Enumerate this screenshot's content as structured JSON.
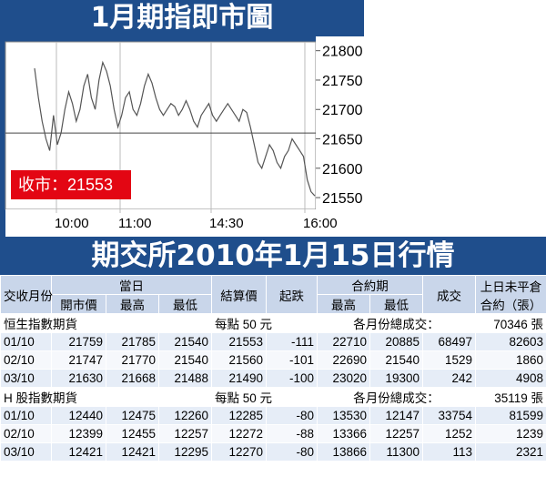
{
  "chart_title": "1月期指即市圖",
  "table_title": "期交所2010年1月15日行情",
  "chart_data": {
    "type": "line",
    "x_ticks": [
      "10:00",
      "11:00",
      "14:30",
      "16:00"
    ],
    "y_ticks": [
      "21800",
      "21750",
      "21700",
      "21650",
      "21600",
      "21550"
    ],
    "ylim": [
      21530,
      21815
    ],
    "reference_level": 21660,
    "close_label": "收市：21553",
    "series": [
      {
        "values": [
          21770,
          21720,
          21680,
          21650,
          21630,
          21690,
          21640,
          21660,
          21700,
          21730,
          21710,
          21680,
          21700,
          21740,
          21760,
          21720,
          21700,
          21750,
          21780,
          21765,
          21740,
          21700,
          21670,
          21690,
          21720,
          21730,
          21700,
          21690,
          21710,
          21740,
          21760,
          21745,
          21720,
          21700,
          21690,
          21700,
          21710,
          21705,
          21690,
          21700,
          21715,
          21700,
          21680,
          21670,
          21690,
          21700,
          21710,
          21690,
          21680,
          21690,
          21700,
          21710,
          21700,
          21690,
          21680,
          21700,
          21695,
          21670,
          21640,
          21610,
          21600,
          21620,
          21640,
          21630,
          21610,
          21600,
          21620,
          21630,
          21650,
          21640,
          21630,
          21620,
          21580,
          21560,
          21553
        ]
      }
    ]
  },
  "table": {
    "header1": {
      "contract_month": "交收月份",
      "today": "當日",
      "settle": "結算價",
      "change": "起跌",
      "lifetime": "合約期",
      "volume": "成交",
      "oi": "上日未平倉合約（張）"
    },
    "header2": {
      "open": "開市價",
      "high": "最高",
      "low": "最低",
      "lt_high": "最高",
      "lt_low": "最低"
    },
    "sections": [
      {
        "name": "恒生指數期貨",
        "point_value": "每點 50 元",
        "total_label": "各月份總成交：",
        "total": "70346 張",
        "rows": [
          [
            "01/10",
            "21759",
            "21785",
            "21540",
            "21553",
            "-111",
            "22710",
            "20885",
            "68497",
            "82603"
          ],
          [
            "02/10",
            "21747",
            "21770",
            "21540",
            "21560",
            "-101",
            "22690",
            "21540",
            "1529",
            "1860"
          ],
          [
            "03/10",
            "21630",
            "21668",
            "21488",
            "21490",
            "-100",
            "23020",
            "19300",
            "242",
            "4908"
          ]
        ]
      },
      {
        "name": "H 股指數期貨",
        "point_value": "每點 50 元",
        "total_label": "各月份總成交：",
        "total": "35119 張",
        "rows": [
          [
            "01/10",
            "12440",
            "12475",
            "12260",
            "12285",
            "-80",
            "13530",
            "12147",
            "33754",
            "81599"
          ],
          [
            "02/10",
            "12399",
            "12455",
            "12257",
            "12272",
            "-88",
            "13366",
            "12257",
            "1252",
            "1239"
          ],
          [
            "03/10",
            "12421",
            "12421",
            "12295",
            "12270",
            "-80",
            "13866",
            "11300",
            "113",
            "2321"
          ]
        ]
      }
    ]
  }
}
